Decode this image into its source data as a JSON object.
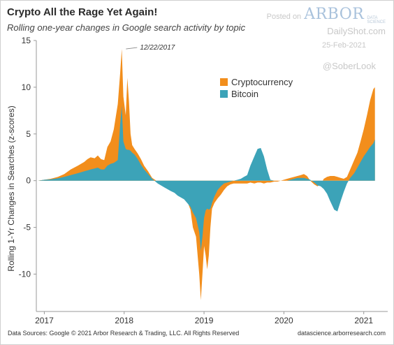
{
  "header": {
    "title": "Crypto All the Rage Yet Again!",
    "subtitle": "Rolling one-year changes in Google search activity by topic"
  },
  "brand": {
    "posted_on": "Posted on",
    "logo_text": "ARBOR",
    "logo_sub_1": "DATA",
    "logo_sub_2": "SCIENCE",
    "site": "DailyShot.com",
    "date": "25-Feb-2021",
    "handle": "@SoberLook"
  },
  "footer": {
    "source": "Data Sources: Google © 2021 Arbor Research & Trading, LLC. All Rights Reserved",
    "url": "datascience.arborresearch.com"
  },
  "colors": {
    "crypto": "#F28E1C",
    "bitcoin": "#3CA3B8",
    "axis": "#999999"
  },
  "chart_data": {
    "type": "area",
    "title": "Crypto All the Rage Yet Again!",
    "subtitle": "Rolling one-year changes in Google search activity by topic",
    "ylabel": "Rolling 1-Yr Changes in Searches (z-scores)",
    "xlabel": "",
    "ylim": [
      -14,
      15
    ],
    "yticks": [
      15,
      10,
      5,
      0,
      -5,
      -10
    ],
    "xticks": [
      {
        "label": "2017",
        "x": 2017
      },
      {
        "label": "2018",
        "x": 2018
      },
      {
        "label": "2019",
        "x": 2019
      },
      {
        "label": "2020",
        "x": 2020
      },
      {
        "label": "2021",
        "x": 2021
      }
    ],
    "xlim": [
      2016.9,
      2021.3
    ],
    "legend": "top-right",
    "annotation": {
      "text": "12/22/2017",
      "x": 2017.97,
      "y": 14.1
    },
    "x": [
      2016.92,
      2017.0,
      2017.08,
      2017.17,
      2017.25,
      2017.33,
      2017.42,
      2017.5,
      2017.54,
      2017.58,
      2017.63,
      2017.67,
      2017.71,
      2017.75,
      2017.79,
      2017.83,
      2017.87,
      2017.92,
      2017.95,
      2017.97,
      2017.99,
      2018.02,
      2018.04,
      2018.06,
      2018.08,
      2018.1,
      2018.13,
      2018.17,
      2018.21,
      2018.25,
      2018.3,
      2018.35,
      2018.42,
      2018.5,
      2018.54,
      2018.58,
      2018.63,
      2018.67,
      2018.71,
      2018.75,
      2018.79,
      2018.83,
      2018.86,
      2018.9,
      2018.94,
      2018.96,
      2018.98,
      2019.0,
      2019.02,
      2019.04,
      2019.06,
      2019.08,
      2019.1,
      2019.13,
      2019.17,
      2019.21,
      2019.25,
      2019.29,
      2019.33,
      2019.37,
      2019.42,
      2019.46,
      2019.5,
      2019.54,
      2019.58,
      2019.63,
      2019.67,
      2019.71,
      2019.75,
      2019.79,
      2019.83,
      2019.88,
      2019.92,
      2019.96,
      2020.0,
      2020.04,
      2020.08,
      2020.13,
      2020.17,
      2020.21,
      2020.25,
      2020.29,
      2020.33,
      2020.38,
      2020.42,
      2020.46,
      2020.5,
      2020.54,
      2020.58,
      2020.63,
      2020.67,
      2020.71,
      2020.75,
      2020.79,
      2020.83,
      2020.88,
      2020.92,
      2020.96,
      2021.0,
      2021.04,
      2021.08,
      2021.12,
      2021.14
    ],
    "series": [
      {
        "name": "Cryptocurrency",
        "values": [
          0,
          0.1,
          0.2,
          0.4,
          0.7,
          1.2,
          1.6,
          2.0,
          2.3,
          2.5,
          2.4,
          2.7,
          2.3,
          2.2,
          3.6,
          4.2,
          5.5,
          8.2,
          11.5,
          14.1,
          9.0,
          7.0,
          11.0,
          8.5,
          5.0,
          3.8,
          3.4,
          2.9,
          2.3,
          1.6,
          1.0,
          0.3,
          -0.1,
          -0.3,
          -0.6,
          -0.8,
          -1.0,
          -1.2,
          -1.4,
          -1.6,
          -2.2,
          -3.1,
          -5.0,
          -6.0,
          -10.0,
          -12.8,
          -10.0,
          -7.0,
          -8.0,
          -9.5,
          -8.0,
          -5.0,
          -3.0,
          -2.4,
          -1.9,
          -1.5,
          -1.0,
          -0.6,
          -0.4,
          -0.3,
          -0.3,
          -0.3,
          -0.3,
          -0.3,
          -0.2,
          -0.3,
          -0.2,
          -0.2,
          -0.3,
          -0.2,
          -0.2,
          -0.1,
          -0.1,
          0.0,
          0.1,
          0.2,
          0.3,
          0.4,
          0.5,
          0.6,
          0.7,
          0.5,
          0.0,
          -0.4,
          -0.6,
          -0.4,
          0.2,
          0.4,
          0.5,
          0.5,
          0.4,
          0.3,
          0.2,
          0.4,
          1.2,
          2.2,
          3.0,
          4.2,
          5.5,
          7.0,
          8.6,
          9.8,
          10.0
        ]
      },
      {
        "name": "Bitcoin",
        "values": [
          0,
          0.1,
          0.15,
          0.25,
          0.4,
          0.6,
          0.8,
          1.0,
          1.1,
          1.2,
          1.3,
          1.4,
          1.2,
          1.2,
          1.6,
          1.8,
          1.9,
          2.2,
          6.0,
          8.0,
          4.2,
          3.4,
          3.3,
          3.3,
          3.2,
          3.0,
          2.8,
          2.3,
          1.7,
          1.2,
          0.7,
          0.2,
          -0.3,
          -0.7,
          -0.9,
          -1.1,
          -1.3,
          -1.6,
          -1.8,
          -2.0,
          -2.4,
          -2.8,
          -3.4,
          -4.0,
          -5.5,
          -7.5,
          -6.0,
          -4.0,
          -3.2,
          -3.0,
          -3.1,
          -3.0,
          -2.4,
          -1.7,
          -1.0,
          -0.6,
          -0.3,
          -0.2,
          -0.1,
          0.0,
          0.1,
          0.2,
          0.4,
          0.6,
          1.6,
          2.6,
          3.4,
          3.5,
          2.6,
          1.2,
          0.1,
          0.0,
          0.0,
          0.0,
          0.0,
          0.0,
          0.1,
          0.2,
          0.3,
          0.3,
          0.3,
          0.2,
          0.1,
          -0.2,
          -0.5,
          -0.6,
          -0.9,
          -1.4,
          -2.2,
          -3.1,
          -3.3,
          -2.2,
          -1.2,
          -0.3,
          0.3,
          0.8,
          1.4,
          2.0,
          2.6,
          3.1,
          3.6,
          4.0,
          4.4
        ]
      }
    ]
  }
}
